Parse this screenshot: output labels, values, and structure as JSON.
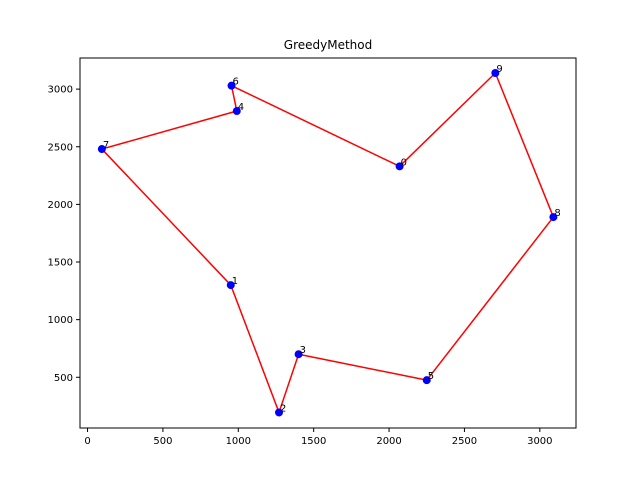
{
  "chart_data": {
    "type": "scatter",
    "title": "GreedyMethod",
    "xlabel": "",
    "ylabel": "",
    "xlim": [
      -50,
      3240
    ],
    "ylim": [
      60,
      3270
    ],
    "xticks": [
      0,
      500,
      1000,
      1500,
      2000,
      2500,
      3000
    ],
    "yticks": [
      500,
      1000,
      1500,
      2000,
      2500,
      3000
    ],
    "grid": false,
    "point_color": "#0000ff",
    "line_color": "#ff0000",
    "points": [
      {
        "label": "0",
        "x": 2070,
        "y": 2330
      },
      {
        "label": "1",
        "x": 950,
        "y": 1300
      },
      {
        "label": "2",
        "x": 1270,
        "y": 195
      },
      {
        "label": "3",
        "x": 1400,
        "y": 700
      },
      {
        "label": "4",
        "x": 990,
        "y": 2810
      },
      {
        "label": "5",
        "x": 2250,
        "y": 475
      },
      {
        "label": "6",
        "x": 955,
        "y": 3030
      },
      {
        "label": "7",
        "x": 95,
        "y": 2480
      },
      {
        "label": "8",
        "x": 3090,
        "y": 1890
      },
      {
        "label": "9",
        "x": 2705,
        "y": 3140
      }
    ],
    "tour": [
      0,
      9,
      8,
      5,
      3,
      2,
      1,
      7,
      4,
      6,
      0
    ]
  }
}
